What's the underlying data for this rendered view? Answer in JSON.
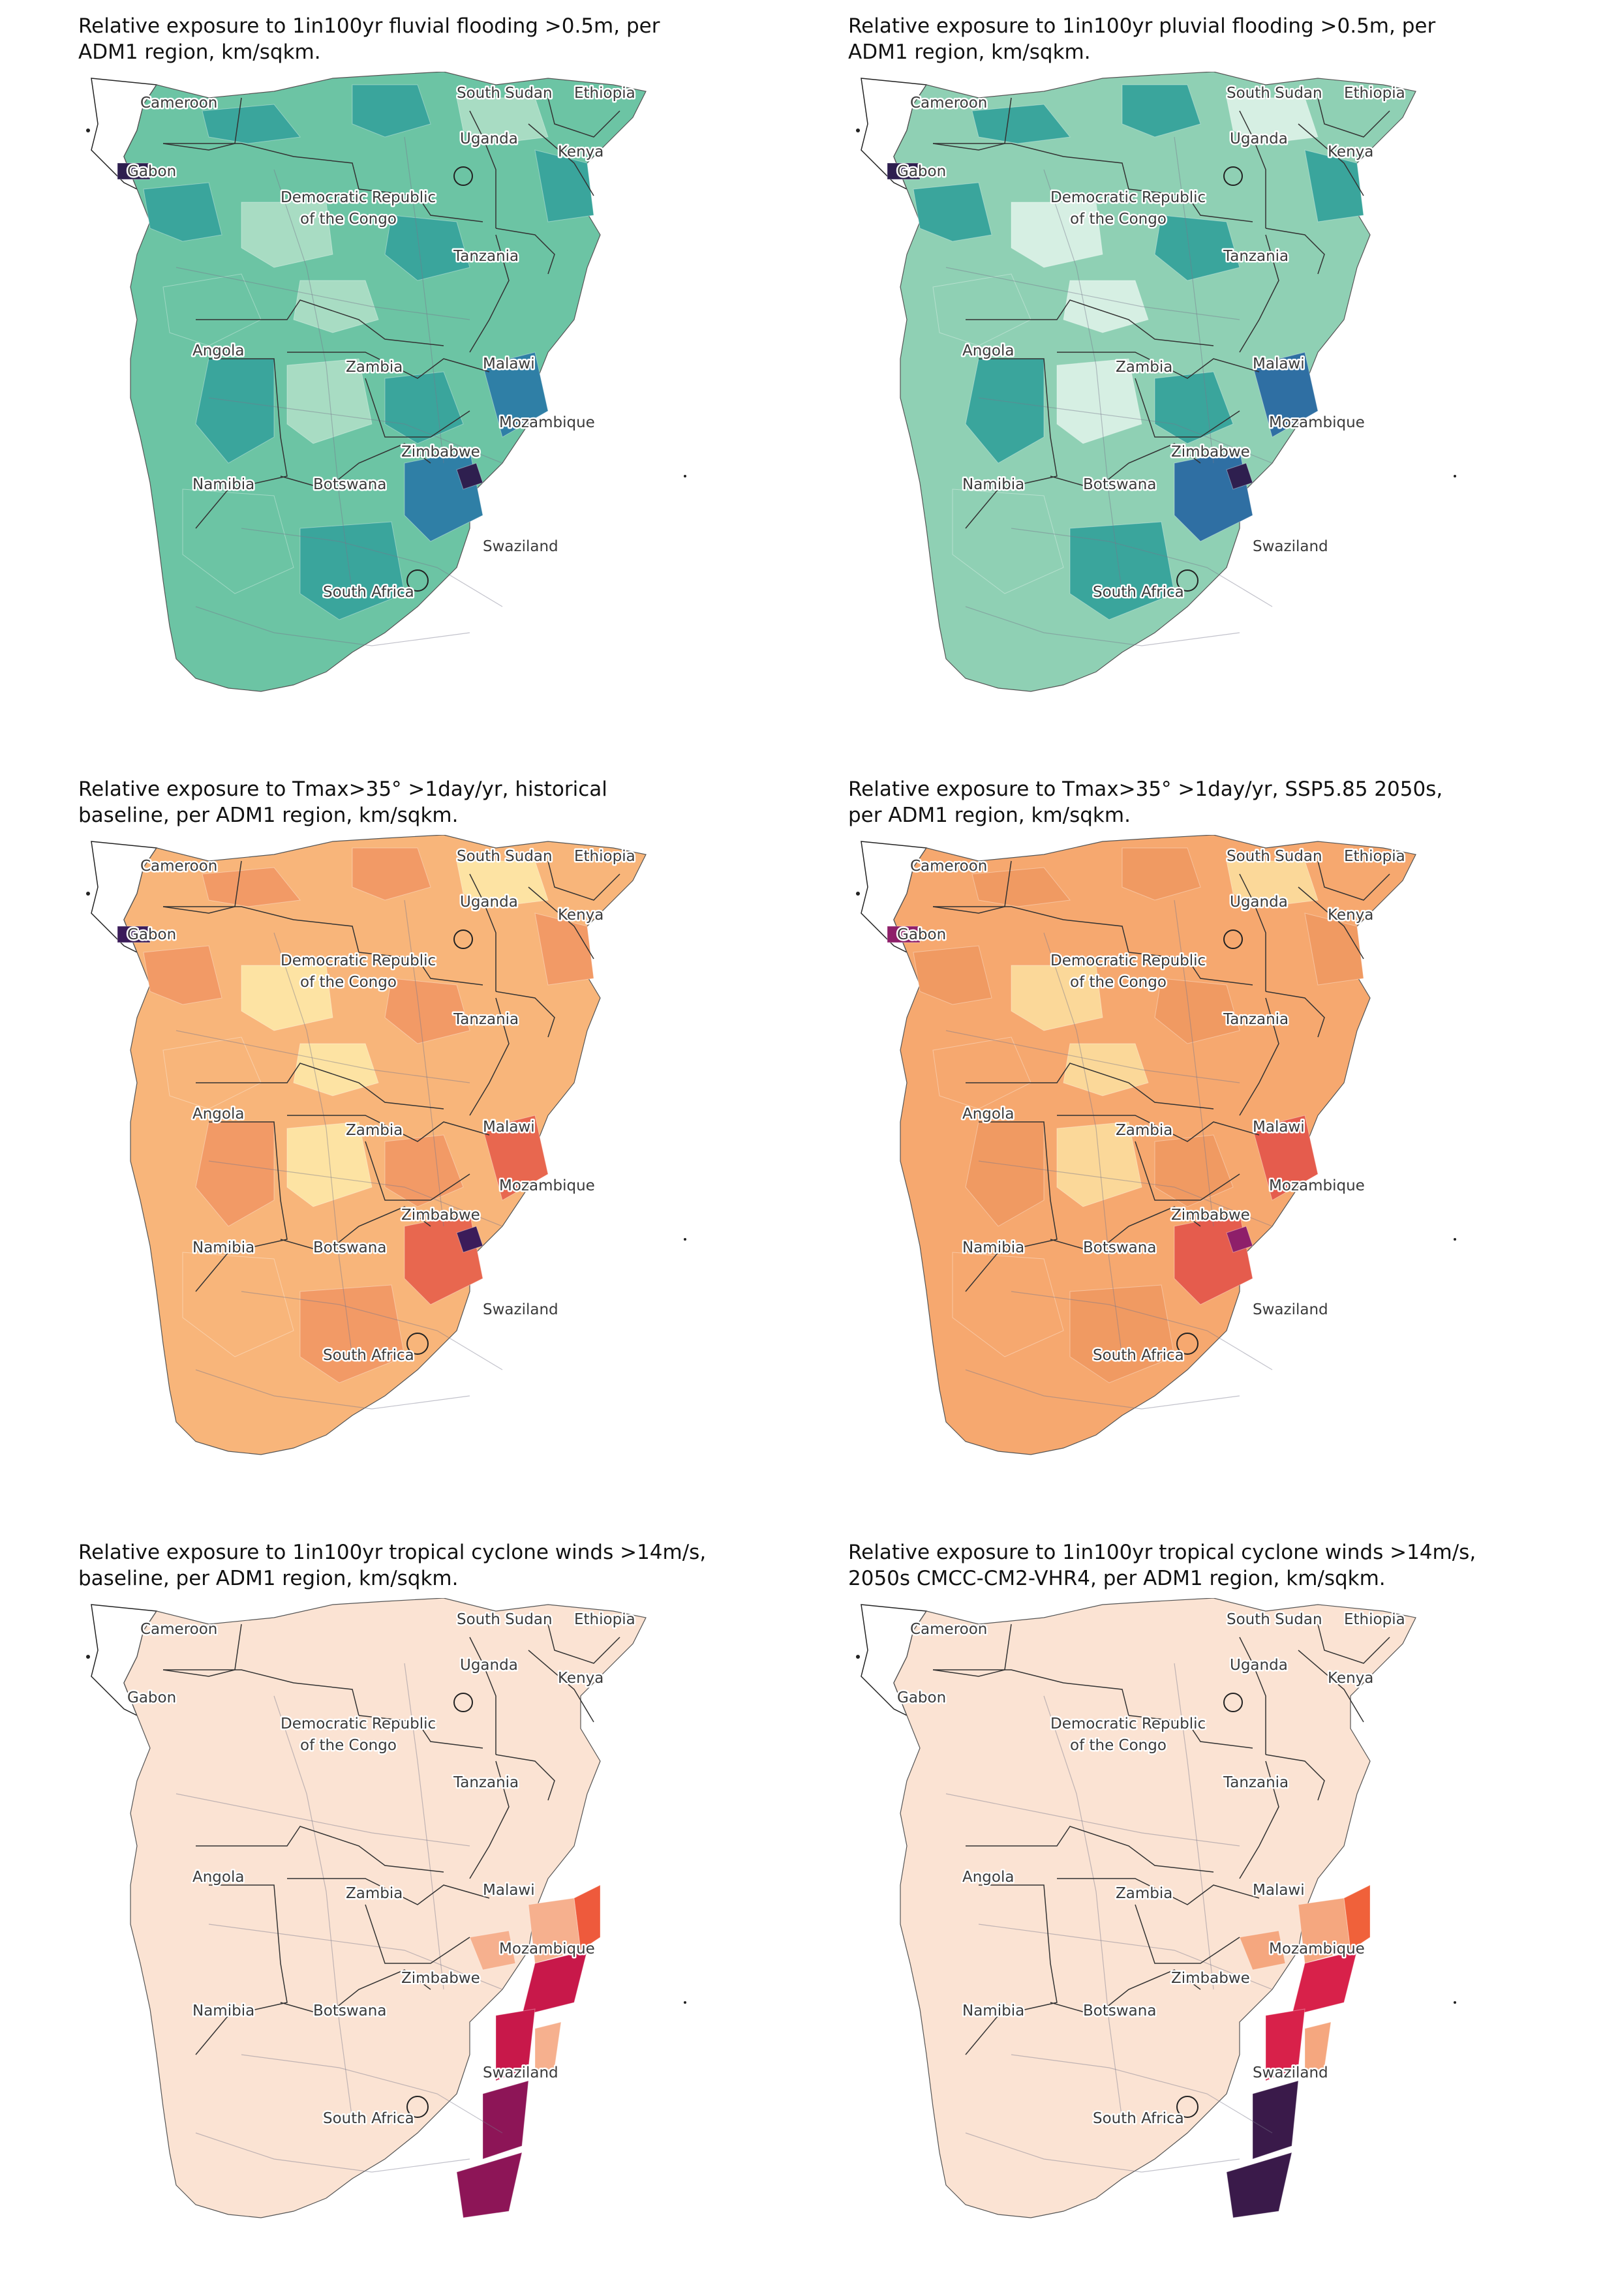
{
  "panels": [
    {
      "id": "fluvial",
      "title_line1": "Relative exposure to 1in100yr fluvial flooding >0.5m, per",
      "title_line2": "ADM1 region, km/sqkm.",
      "palette_name": "teal",
      "colors": {
        "land": "#6cc4a4",
        "high": "#2f7fa6",
        "mid": "#3aa59c",
        "light": "#a8dcc3",
        "max": "#2e1f4f"
      }
    },
    {
      "id": "pluvial",
      "title_line1": "Relative exposure to 1in100yr pluvial flooding >0.5m, per",
      "title_line2": "ADM1 region, km/sqkm.",
      "palette_name": "teal",
      "colors": {
        "land": "#8fd0b4",
        "high": "#2f6fa3",
        "mid": "#3aa59c",
        "light": "#d6efe3",
        "max": "#2e1f4f"
      }
    },
    {
      "id": "tmax-hist",
      "title_line1": "Relative exposure to Tmax>35°  >1day/yr, historical",
      "title_line2": "baseline, per ADM1 region, km/sqkm.",
      "palette_name": "magma",
      "colors": {
        "land": "#f8b57a",
        "high": "#e8674f",
        "mid": "#f29a66",
        "light": "#fde3a3",
        "max": "#3b1c5a"
      }
    },
    {
      "id": "tmax-ssp585",
      "title_line1": "Relative exposure to Tmax>35°  >1day/yr, SSP5.85 2050s,",
      "title_line2": "per ADM1 region, km/sqkm.",
      "palette_name": "magma",
      "colors": {
        "land": "#f6a86f",
        "high": "#e55c4d",
        "mid": "#f09a62",
        "light": "#fbd899",
        "max": "#8e1f6a"
      }
    },
    {
      "id": "tc-baseline",
      "title_line1": "Relative exposure to 1in100yr tropical cyclone winds >14m/s,",
      "title_line2": "baseline, per ADM1 region, km/sqkm.",
      "palette_name": "rocket",
      "colors": {
        "land": "#fbe3d3",
        "high": "#c8184a",
        "mid": "#ee5a3c",
        "light": "#f6b08e",
        "max": "#8d1557"
      }
    },
    {
      "id": "tc-2050s",
      "title_line1": "Relative exposure to 1in100yr tropical cyclone winds >14m/s,",
      "title_line2": "2050s CMCC-CM2-VHR4, per ADM1 region, km/sqkm.",
      "palette_name": "rocket",
      "colors": {
        "land": "#fbe3d3",
        "high": "#d8214a",
        "mid": "#f0613a",
        "light": "#f5a77f",
        "max": "#3a1a4a"
      }
    }
  ],
  "labels": {
    "cameroon": "Cameroon",
    "gabon": "Gabon",
    "south_sudan": "South Sudan",
    "ethiopia": "Ethiopia",
    "uganda": "Uganda",
    "kenya": "Kenya",
    "drc_line1": "Democratic Republic",
    "drc_line2": "of the Congo",
    "tanzania": "Tanzania",
    "angola": "Angola",
    "zambia": "Zambia",
    "malawi": "Malawi",
    "mozambique": "Mozambique",
    "zimbabwe": "Zimbabwe",
    "namibia": "Namibia",
    "botswana": "Botswana",
    "swaziland": "Swaziland",
    "south_africa": "South Africa"
  }
}
